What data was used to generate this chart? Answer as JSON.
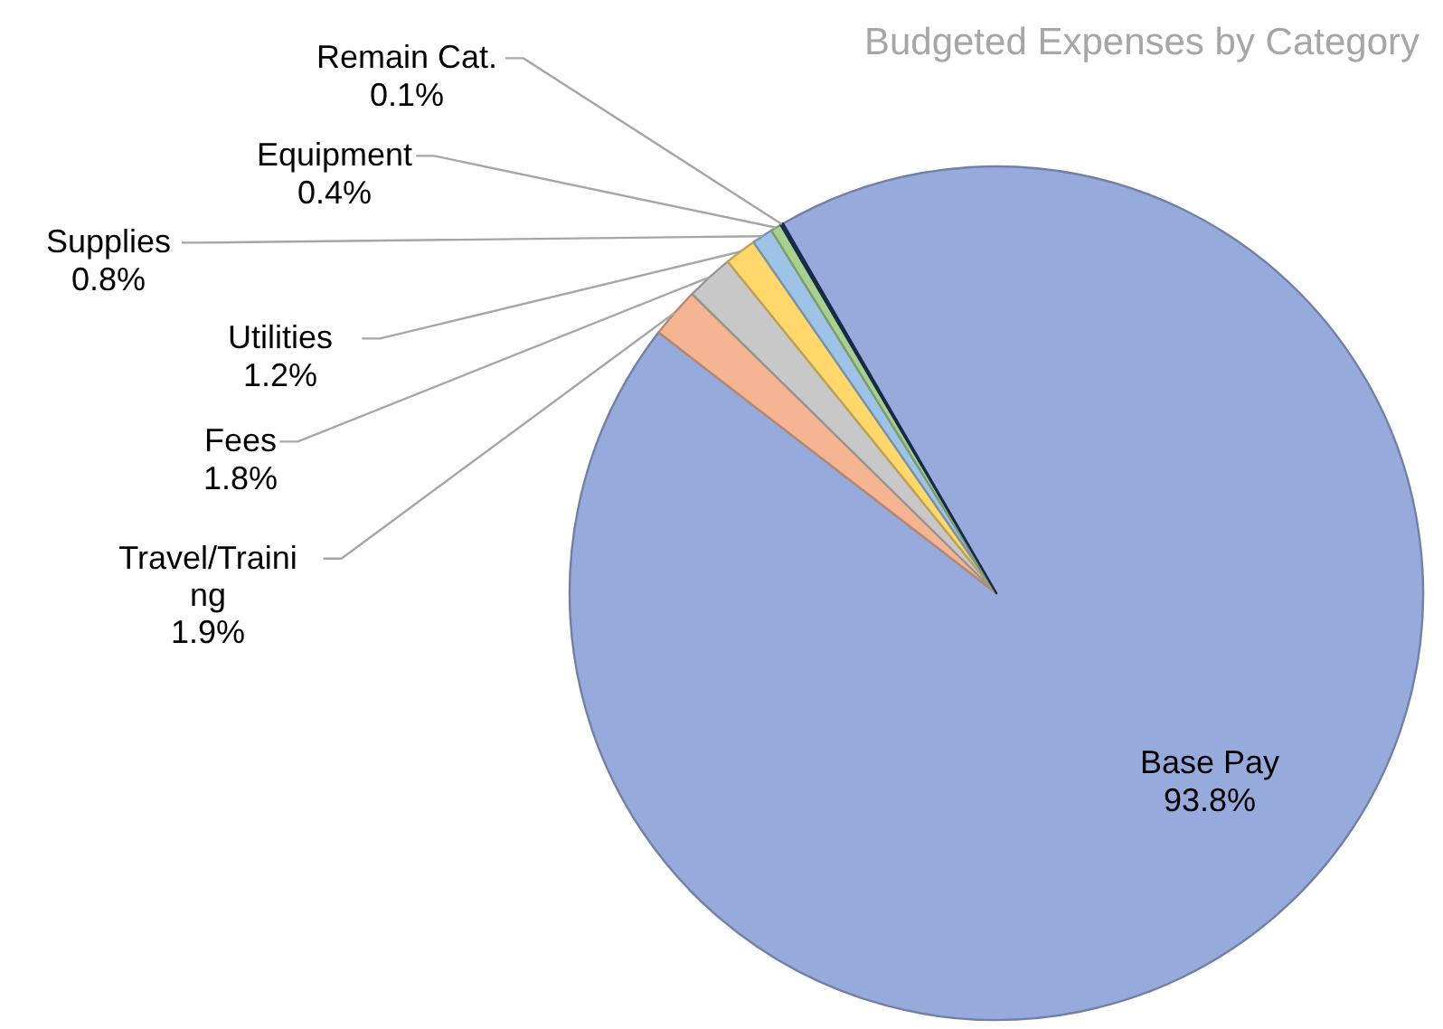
{
  "chart_data": {
    "type": "pie",
    "title": "Budgeted Expenses by Category",
    "categories": [
      "Base Pay",
      "Travel/Training",
      "Fees",
      "Utilities",
      "Supplies",
      "Equipment",
      "Remain Cat."
    ],
    "values": [
      93.8,
      1.9,
      1.8,
      1.2,
      0.8,
      0.4,
      0.1
    ],
    "value_labels": [
      "93.8%",
      "1.9%",
      "1.8%",
      "1.2%",
      "0.8%",
      "0.4%",
      "0.1%"
    ],
    "colors": [
      "#97aadc",
      "#f5b593",
      "#c8c8c8",
      "#ffd76a",
      "#9dc3e6",
      "#a9d18e",
      "#203864"
    ]
  }
}
